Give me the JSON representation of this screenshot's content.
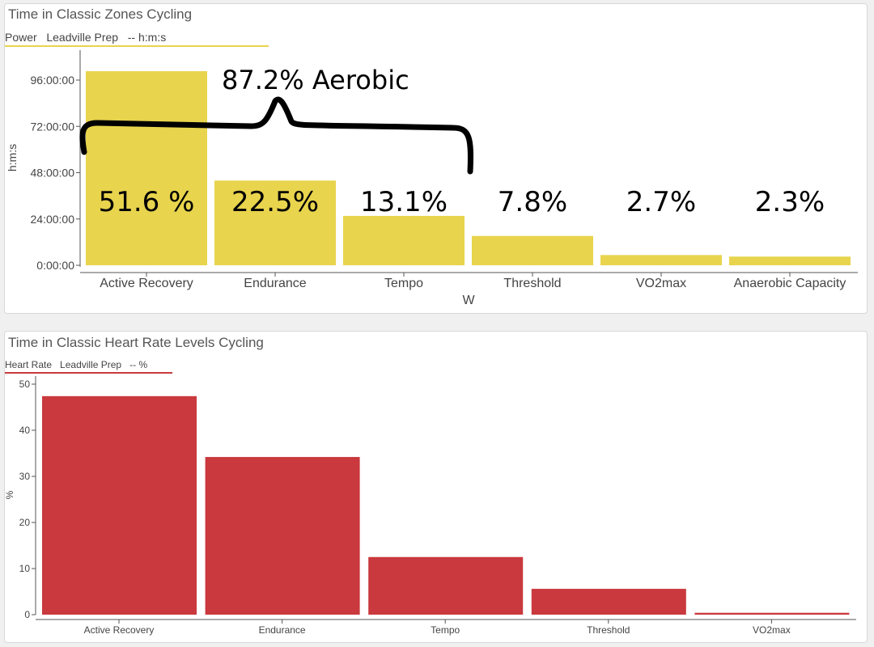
{
  "chart_data": [
    {
      "type": "bar",
      "title": "Time in Classic Zones Cycling",
      "legend": {
        "series": "Power",
        "plan": "Leadville Prep",
        "unit": "-- h:m:s",
        "color": "#e8d44d",
        "placement": "top-left"
      },
      "xlabel": "W",
      "ylabel": "h:m:s",
      "categories": [
        "Active Recovery",
        "Endurance",
        "Tempo",
        "Threshold",
        "VO2max",
        "Anaerobic Capacity"
      ],
      "values_hours": [
        100.6,
        43.9,
        25.6,
        15.2,
        5.3,
        4.5
      ],
      "yticks": [
        "0:00:00",
        "24:00:00",
        "48:00:00",
        "72:00:00",
        "96:00:00"
      ],
      "ytick_values_hours": [
        0,
        24,
        48,
        72,
        96
      ],
      "ylim_hours": [
        0,
        104
      ],
      "color": "#e8d44d",
      "grid": false,
      "annotations": {
        "bar_percent_labels": [
          "51.6 %",
          "22.5%",
          "13.1%",
          "7.8%",
          "2.7%",
          "2.3%"
        ],
        "brace_label": "87.2% Aerobic",
        "brace_spans": [
          "Active Recovery",
          "Endurance",
          "Tempo"
        ]
      }
    },
    {
      "type": "bar",
      "title": "Time in Classic Heart Rate Levels Cycling",
      "legend": {
        "series": "Heart Rate",
        "plan": "Leadville Prep",
        "unit": "-- %",
        "color": "#c9393d",
        "placement": "top-left"
      },
      "xlabel": "",
      "ylabel": "%",
      "categories": [
        "Active Recovery",
        "Endurance",
        "Tempo",
        "Threshold",
        "VO2max"
      ],
      "values": [
        47.4,
        34.2,
        12.5,
        5.6,
        0.4
      ],
      "yticks": [
        0,
        10,
        20,
        30,
        40,
        50
      ],
      "ylim": [
        0,
        52
      ],
      "color": "#c9393d",
      "grid": false
    }
  ]
}
